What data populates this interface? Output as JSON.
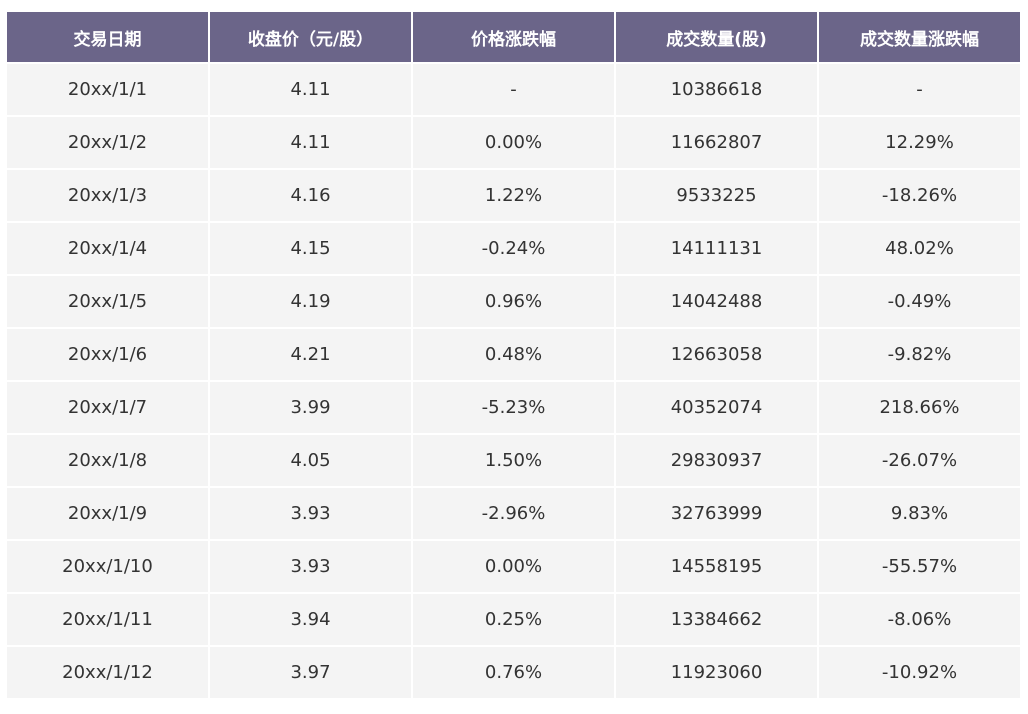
{
  "table": {
    "headers": [
      "交易日期",
      "收盘价（元/股）",
      "价格涨跌幅",
      "成交数量(股)",
      "成交数量涨跌幅"
    ],
    "rows": [
      [
        "20xx/1/1",
        "4.11",
        "-",
        "10386618",
        "-"
      ],
      [
        "20xx/1/2",
        "4.11",
        "0.00%",
        "11662807",
        "12.29%"
      ],
      [
        "20xx/1/3",
        "4.16",
        "1.22%",
        "9533225",
        "-18.26%"
      ],
      [
        "20xx/1/4",
        "4.15",
        "-0.24%",
        "14111131",
        "48.02%"
      ],
      [
        "20xx/1/5",
        "4.19",
        "0.96%",
        "14042488",
        "-0.49%"
      ],
      [
        "20xx/1/6",
        "4.21",
        "0.48%",
        "12663058",
        "-9.82%"
      ],
      [
        "20xx/1/7",
        "3.99",
        "-5.23%",
        "40352074",
        "218.66%"
      ],
      [
        "20xx/1/8",
        "4.05",
        "1.50%",
        "29830937",
        "-26.07%"
      ],
      [
        "20xx/1/9",
        "3.93",
        "-2.96%",
        "32763999",
        "9.83%"
      ],
      [
        "20xx/1/10",
        "3.93",
        "0.00%",
        "14558195",
        "-55.57%"
      ],
      [
        "20xx/1/11",
        "3.94",
        "0.25%",
        "13384662",
        "-8.06%"
      ],
      [
        "20xx/1/12",
        "3.97",
        "0.76%",
        "11923060",
        "-10.92%"
      ]
    ]
  },
  "colors": {
    "header_bg": "#6b6589",
    "header_text": "#ffffff",
    "cell_bg": "#f4f4f4",
    "cell_text": "#333333"
  }
}
